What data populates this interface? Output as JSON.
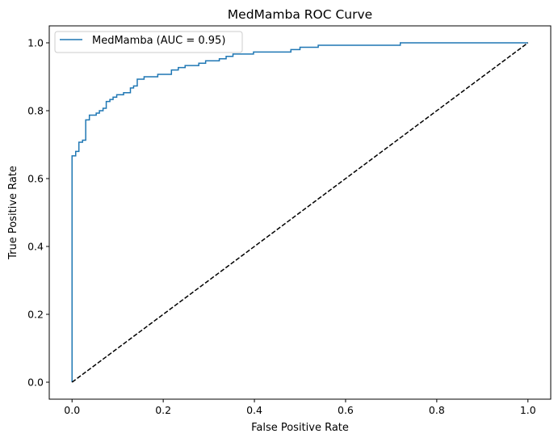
{
  "chart_data": {
    "type": "line",
    "title": "MedMamba ROC Curve",
    "xlabel": "False Positive Rate",
    "ylabel": "True Positive Rate",
    "xlim": [
      -0.05,
      1.05
    ],
    "ylim": [
      -0.05,
      1.05
    ],
    "xticks": [
      "0.0",
      "0.2",
      "0.4",
      "0.6",
      "0.8",
      "1.0"
    ],
    "yticks": [
      "0.0",
      "0.2",
      "0.4",
      "0.6",
      "0.8",
      "1.0"
    ],
    "grid": false,
    "legend_position": "upper left",
    "series": [
      {
        "name": "MedMamba (AUC = 0.95)",
        "color": "#1f77b4",
        "style": "solid",
        "step": true,
        "x": [
          0.0,
          0.0,
          0.008,
          0.008,
          0.015,
          0.015,
          0.023,
          0.023,
          0.03,
          0.03,
          0.038,
          0.038,
          0.053,
          0.053,
          0.06,
          0.06,
          0.068,
          0.068,
          0.075,
          0.075,
          0.083,
          0.083,
          0.09,
          0.09,
          0.098,
          0.098,
          0.113,
          0.113,
          0.128,
          0.128,
          0.135,
          0.135,
          0.143,
          0.143,
          0.158,
          0.158,
          0.173,
          0.173,
          0.188,
          0.188,
          0.218,
          0.218,
          0.233,
          0.233,
          0.248,
          0.248,
          0.278,
          0.278,
          0.293,
          0.293,
          0.323,
          0.323,
          0.338,
          0.338,
          0.353,
          0.353,
          0.383,
          0.383,
          0.398,
          0.398,
          0.42,
          0.42,
          0.48,
          0.48,
          0.5,
          0.5,
          0.54,
          0.54,
          0.65,
          0.65,
          0.72,
          0.72,
          1.0
        ],
        "y": [
          0.0,
          0.667,
          0.667,
          0.68,
          0.68,
          0.707,
          0.707,
          0.713,
          0.713,
          0.773,
          0.773,
          0.787,
          0.787,
          0.793,
          0.793,
          0.8,
          0.8,
          0.807,
          0.807,
          0.827,
          0.827,
          0.833,
          0.833,
          0.84,
          0.84,
          0.847,
          0.847,
          0.853,
          0.853,
          0.867,
          0.867,
          0.873,
          0.873,
          0.893,
          0.893,
          0.9,
          0.9,
          0.9,
          0.9,
          0.907,
          0.907,
          0.92,
          0.92,
          0.927,
          0.927,
          0.933,
          0.933,
          0.94,
          0.94,
          0.947,
          0.947,
          0.953,
          0.953,
          0.96,
          0.96,
          0.967,
          0.967,
          0.967,
          0.967,
          0.973,
          0.973,
          0.973,
          0.973,
          0.98,
          0.98,
          0.987,
          0.987,
          0.993,
          0.993,
          0.993,
          0.993,
          1.0,
          1.0
        ]
      },
      {
        "name": "",
        "color": "#000000",
        "style": "dashed",
        "step": false,
        "x": [
          0.0,
          1.0
        ],
        "y": [
          0.0,
          1.0
        ]
      }
    ]
  }
}
